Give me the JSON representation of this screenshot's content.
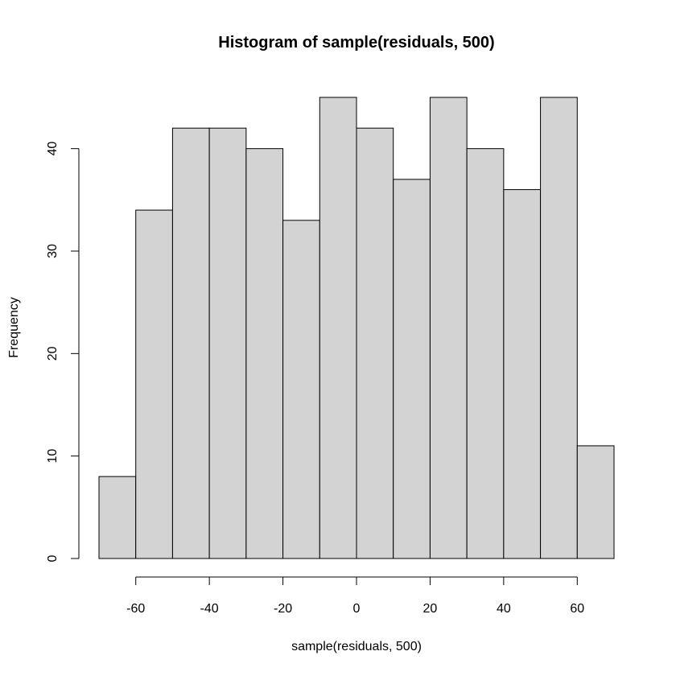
{
  "chart_data": {
    "type": "bar",
    "title": "Histogram of sample(residuals, 500)",
    "xlabel": "sample(residuals, 500)",
    "ylabel": "Frequency",
    "bins": [
      {
        "start": -70,
        "end": -60,
        "count": 8
      },
      {
        "start": -60,
        "end": -50,
        "count": 34
      },
      {
        "start": -50,
        "end": -40,
        "count": 42
      },
      {
        "start": -40,
        "end": -30,
        "count": 42
      },
      {
        "start": -30,
        "end": -20,
        "count": 40
      },
      {
        "start": -20,
        "end": -10,
        "count": 33
      },
      {
        "start": -10,
        "end": 0,
        "count": 45
      },
      {
        "start": 0,
        "end": 10,
        "count": 42
      },
      {
        "start": 10,
        "end": 20,
        "count": 37
      },
      {
        "start": 20,
        "end": 30,
        "count": 45
      },
      {
        "start": 30,
        "end": 40,
        "count": 40
      },
      {
        "start": 40,
        "end": 50,
        "count": 36
      },
      {
        "start": 50,
        "end": 60,
        "count": 45
      },
      {
        "start": 60,
        "end": 70,
        "count": 11
      }
    ],
    "xlim": [
      -70,
      70
    ],
    "ylim": [
      0,
      45
    ],
    "x_ticks": [
      -60,
      -40,
      -20,
      0,
      20,
      40,
      60
    ],
    "x_tick_labels": [
      "-60",
      "-40",
      "-20",
      "0",
      "20",
      "40",
      "60"
    ],
    "y_ticks": [
      0,
      10,
      20,
      30,
      40
    ],
    "y_tick_labels": [
      "0",
      "10",
      "20",
      "30",
      "40"
    ],
    "bar_color": "#d3d3d3",
    "border_color": "#000000",
    "grid": false,
    "legend": "none"
  }
}
